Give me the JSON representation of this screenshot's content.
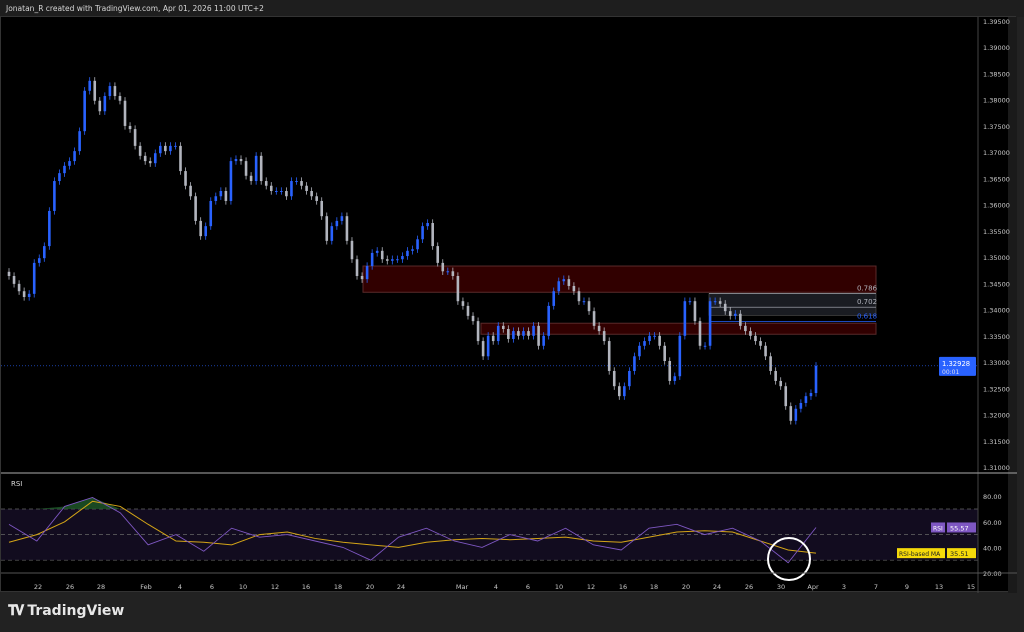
{
  "header": {
    "caption": "Jonatan_R created with TradingView.com, Apr 01, 2026 11:00 UTC+2"
  },
  "footer": {
    "brand": "TradingView",
    "logo_text": "TV"
  },
  "colors": {
    "up": "#2962ff",
    "down": "#b2b5be",
    "zone": "#3a0000",
    "rsi": "#7e57c2",
    "rsi_ma": "#d4a517",
    "price_tag": "#2962ff"
  },
  "chart_data": [
    {
      "type": "candlestick",
      "title": "",
      "price_axis": {
        "ticks": [
          "1.39500",
          "1.39000",
          "1.38500",
          "1.38000",
          "1.37500",
          "1.37000",
          "1.36500",
          "1.36000",
          "1.35500",
          "1.35000",
          "1.34500",
          "1.34000",
          "1.33500",
          "1.33000",
          "1.32500",
          "1.32000",
          "1.31500",
          "1.31000"
        ],
        "ylim": [
          1.31,
          1.395
        ]
      },
      "time_axis": {
        "ticks": [
          "22",
          "26",
          "28",
          "Feb",
          "4",
          "6",
          "10",
          "12",
          "16",
          "18",
          "20",
          "24",
          "Mar",
          "4",
          "6",
          "10",
          "12",
          "16",
          "18",
          "20",
          "24",
          "26",
          "30",
          "Apr",
          "3",
          "7",
          "9",
          "13",
          "15"
        ]
      },
      "closes": [
        1.3464,
        1.3449,
        1.3435,
        1.3424,
        1.343,
        1.3489,
        1.3498,
        1.3521,
        1.3588,
        1.3645,
        1.366,
        1.3674,
        1.3683,
        1.3702,
        1.374,
        1.3817,
        1.3836,
        1.3798,
        1.3778,
        1.3807,
        1.3826,
        1.3807,
        1.3798,
        1.375,
        1.3744,
        1.3712,
        1.3693,
        1.3683,
        1.3679,
        1.3698,
        1.3712,
        1.3702,
        1.3712,
        1.3712,
        1.3664,
        1.3636,
        1.3616,
        1.3569,
        1.354,
        1.3559,
        1.3607,
        1.3616,
        1.3626,
        1.3607,
        1.3683,
        1.3687,
        1.3683,
        1.3655,
        1.3645,
        1.3693,
        1.3645,
        1.3636,
        1.3626,
        1.3626,
        1.3626,
        1.3616,
        1.3645,
        1.3645,
        1.3636,
        1.3626,
        1.3616,
        1.3607,
        1.3578,
        1.3531,
        1.3559,
        1.3569,
        1.3578,
        1.3531,
        1.3496,
        1.3464,
        1.3458,
        1.3483,
        1.3508,
        1.3512,
        1.3496,
        1.3493,
        1.3496,
        1.3496,
        1.3502,
        1.3512,
        1.3515,
        1.3534,
        1.3559,
        1.3565,
        1.3521,
        1.3489,
        1.3473,
        1.3473,
        1.3464,
        1.3416,
        1.3407,
        1.3388,
        1.3378,
        1.334,
        1.3311,
        1.335,
        1.334,
        1.3369,
        1.3363,
        1.3344,
        1.3359,
        1.335,
        1.3359,
        1.335,
        1.3369,
        1.3331,
        1.335,
        1.3407,
        1.3435,
        1.3454,
        1.3458,
        1.3445,
        1.3435,
        1.3416,
        1.3416,
        1.3397,
        1.3369,
        1.3359,
        1.334,
        1.3283,
        1.3254,
        1.3235,
        1.3254,
        1.3283,
        1.3311,
        1.3331,
        1.334,
        1.335,
        1.335,
        1.3331,
        1.3302,
        1.3264,
        1.3273,
        1.335,
        1.3416,
        1.3416,
        1.3378,
        1.3331,
        1.3331,
        1.3416,
        1.3416,
        1.3411,
        1.3397,
        1.3388,
        1.3392,
        1.3369,
        1.3359,
        1.335,
        1.334,
        1.3331,
        1.3311,
        1.3283,
        1.3264,
        1.3254,
        1.3216,
        1.3188,
        1.3211,
        1.3222,
        1.3235,
        1.3241,
        1.32928
      ],
      "current_price": {
        "value": "1.32928",
        "countdown": "00:01"
      },
      "zones": [
        {
          "top": 1.3483,
          "bottom": 1.3433
        },
        {
          "top": 1.3374,
          "bottom": 1.3353
        }
      ],
      "fib_levels": [
        {
          "label": "0.786",
          "price": 1.3442,
          "color": "#b2b5be"
        },
        {
          "label": "0.702",
          "price": 1.3416,
          "color": "#b2b5be"
        },
        {
          "label": "0.618",
          "price": 1.3389,
          "color": "#2962ff"
        }
      ]
    },
    {
      "type": "line",
      "title": "RSI",
      "y_ticks": [
        "80.00",
        "60.00",
        "40.00",
        "20.00"
      ],
      "ylim": [
        15,
        88
      ],
      "bands": [
        70,
        50,
        30
      ],
      "series": [
        {
          "name": "RSI",
          "last": "55.57",
          "values": [
            58,
            45,
            72,
            79,
            67,
            42,
            50,
            37,
            55,
            48,
            50,
            45,
            40,
            30,
            48,
            55,
            45,
            40,
            50,
            45,
            55,
            42,
            38,
            55,
            58,
            50,
            55,
            45,
            28,
            55.57
          ]
        },
        {
          "name": "RSI-based MA",
          "last": "35.51",
          "values": [
            44,
            50,
            60,
            76,
            72,
            58,
            45,
            44,
            42,
            50,
            52,
            47,
            44,
            42,
            40,
            44,
            46,
            47,
            46,
            47,
            48,
            45,
            44,
            48,
            52,
            53,
            52,
            45,
            38,
            35.51
          ]
        }
      ]
    }
  ]
}
